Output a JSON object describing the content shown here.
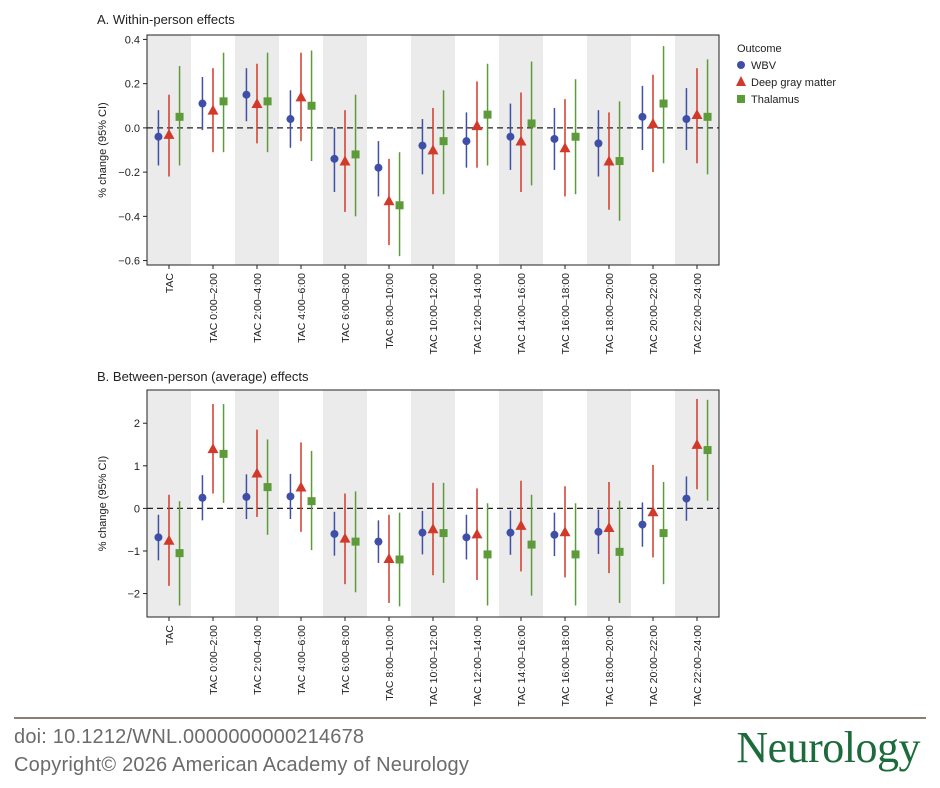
{
  "panels": [
    {
      "title": "A. Within-person effects",
      "chart_data": {
        "type": "scatter",
        "title": "A. Within-person effects",
        "xlabel": "",
        "ylabel": "% change (95% CI)",
        "ylim": [
          -0.62,
          0.42
        ],
        "yticks": [
          -0.6,
          -0.4,
          -0.2,
          0.0,
          0.2,
          0.4
        ],
        "ytick_labels": [
          "−0.6",
          "−0.4",
          "−0.2",
          "0.0",
          "0.2",
          "0.4"
        ],
        "reference_line": 0,
        "shaded_categories": [
          0,
          2,
          4,
          6,
          8,
          10,
          12
        ],
        "categories": [
          "TAC",
          "TAC 0:00–2:00",
          "TAC 2:00–4:00",
          "TAC 4:00–6:00",
          "TAC 6:00–8:00",
          "TAC 8:00–10:00",
          "TAC 10:00–12:00",
          "TAC 12:00–14:00",
          "TAC 14:00–16:00",
          "TAC 16:00–18:00",
          "TAC 18:00–20:00",
          "TAC 20:00–22:00",
          "TAC 22:00–24:00"
        ],
        "series": [
          {
            "name": "WBV",
            "color": "#3f4fa8",
            "marker": "circle",
            "values": [
              -0.04,
              0.11,
              0.15,
              0.04,
              -0.14,
              -0.18,
              -0.08,
              -0.06,
              -0.04,
              -0.05,
              -0.07,
              0.05,
              0.04
            ],
            "lower": [
              -0.17,
              -0.01,
              0.03,
              -0.09,
              -0.29,
              -0.31,
              -0.21,
              -0.18,
              -0.19,
              -0.19,
              -0.22,
              -0.1,
              -0.1
            ],
            "upper": [
              0.08,
              0.23,
              0.27,
              0.17,
              0.0,
              -0.06,
              0.04,
              0.07,
              0.11,
              0.09,
              0.08,
              0.19,
              0.18
            ]
          },
          {
            "name": "Deep gray matter",
            "color": "#d13a2a",
            "marker": "triangle",
            "values": [
              -0.03,
              0.08,
              0.11,
              0.14,
              -0.15,
              -0.33,
              -0.1,
              0.01,
              -0.06,
              -0.09,
              -0.15,
              0.02,
              0.06
            ],
            "lower": [
              -0.22,
              -0.11,
              -0.07,
              -0.06,
              -0.38,
              -0.53,
              -0.3,
              -0.18,
              -0.29,
              -0.31,
              -0.37,
              -0.2,
              -0.16
            ],
            "upper": [
              0.15,
              0.27,
              0.29,
              0.34,
              0.08,
              -0.14,
              0.09,
              0.21,
              0.16,
              0.13,
              0.07,
              0.24,
              0.27
            ]
          },
          {
            "name": "Thalamus",
            "color": "#5c9a3a",
            "marker": "square",
            "values": [
              0.05,
              0.12,
              0.12,
              0.1,
              -0.12,
              -0.35,
              -0.06,
              0.06,
              0.02,
              -0.04,
              -0.15,
              0.11,
              0.05
            ],
            "lower": [
              -0.17,
              -0.11,
              -0.11,
              -0.15,
              -0.4,
              -0.58,
              -0.3,
              -0.17,
              -0.26,
              -0.3,
              -0.42,
              -0.16,
              -0.21
            ],
            "upper": [
              0.28,
              0.34,
              0.34,
              0.35,
              0.15,
              -0.11,
              0.17,
              0.29,
              0.3,
              0.22,
              0.12,
              0.37,
              0.31
            ]
          }
        ],
        "legend": {
          "title": "Outcome",
          "position": "right"
        }
      }
    },
    {
      "title": "B. Between-person (average) effects",
      "chart_data": {
        "type": "scatter",
        "title": "B. Between-person (average) effects",
        "xlabel": "",
        "ylabel": "% change (95% CI)",
        "ylim": [
          -2.55,
          2.78
        ],
        "yticks": [
          -2,
          -1,
          0,
          1,
          2
        ],
        "ytick_labels": [
          "−2",
          "−1",
          "0",
          "1",
          "2"
        ],
        "reference_line": 0,
        "shaded_categories": [
          0,
          2,
          4,
          6,
          8,
          10,
          12
        ],
        "categories": [
          "TAC",
          "TAC 0:00–2:00",
          "TAC 2:00–4:00",
          "TAC 4:00–6:00",
          "TAC 6:00–8:00",
          "TAC 8:00–10:00",
          "TAC 10:00–12:00",
          "TAC 12:00–14:00",
          "TAC 14:00–16:00",
          "TAC 16:00–18:00",
          "TAC 18:00–20:00",
          "TAC 20:00–22:00",
          "TAC 22:00–24:00"
        ],
        "series": [
          {
            "name": "WBV",
            "color": "#3f4fa8",
            "marker": "circle",
            "values": [
              -0.68,
              0.25,
              0.27,
              0.28,
              -0.6,
              -0.78,
              -0.57,
              -0.68,
              -0.57,
              -0.62,
              -0.55,
              -0.38,
              0.23
            ],
            "lower": [
              -1.22,
              -0.28,
              -0.25,
              -0.25,
              -1.11,
              -1.28,
              -1.08,
              -1.2,
              -1.09,
              -1.12,
              -1.07,
              -0.9,
              -0.29
            ],
            "upper": [
              -0.15,
              0.78,
              0.8,
              0.81,
              -0.08,
              -0.28,
              -0.06,
              -0.15,
              -0.05,
              -0.1,
              -0.03,
              0.14,
              0.75
            ]
          },
          {
            "name": "Deep gray matter",
            "color": "#d13a2a",
            "marker": "triangle",
            "values": [
              -0.75,
              1.4,
              0.83,
              0.5,
              -0.7,
              -1.18,
              -0.48,
              -0.6,
              -0.4,
              -0.55,
              -0.45,
              -0.08,
              1.5
            ],
            "lower": [
              -1.82,
              0.35,
              -0.2,
              -0.55,
              -1.78,
              -2.22,
              -1.57,
              -1.68,
              -1.48,
              -1.62,
              -1.52,
              -1.15,
              0.45
            ],
            "upper": [
              0.32,
              2.45,
              1.85,
              1.55,
              0.35,
              -0.15,
              0.6,
              0.47,
              0.65,
              0.52,
              0.62,
              1.02,
              2.57
            ]
          },
          {
            "name": "Thalamus",
            "color": "#5c9a3a",
            "marker": "square",
            "values": [
              -1.05,
              1.28,
              0.5,
              0.17,
              -0.78,
              -1.2,
              -0.58,
              -1.08,
              -0.85,
              -1.08,
              -1.02,
              -0.58,
              1.37
            ],
            "lower": [
              -2.28,
              0.13,
              -0.62,
              -0.98,
              -1.97,
              -2.3,
              -1.75,
              -2.28,
              -2.05,
              -2.28,
              -2.22,
              -1.78,
              0.18
            ],
            "upper": [
              0.17,
              2.45,
              1.62,
              1.35,
              0.4,
              -0.1,
              0.6,
              0.12,
              0.32,
              0.12,
              0.18,
              0.62,
              2.55
            ]
          }
        ]
      }
    }
  ],
  "footer": {
    "doi": "doi: 10.1212/WNL.0000000000214678",
    "copyright": "Copyright© 2026 American Academy of Neurology",
    "logo_text": "Neurology"
  }
}
